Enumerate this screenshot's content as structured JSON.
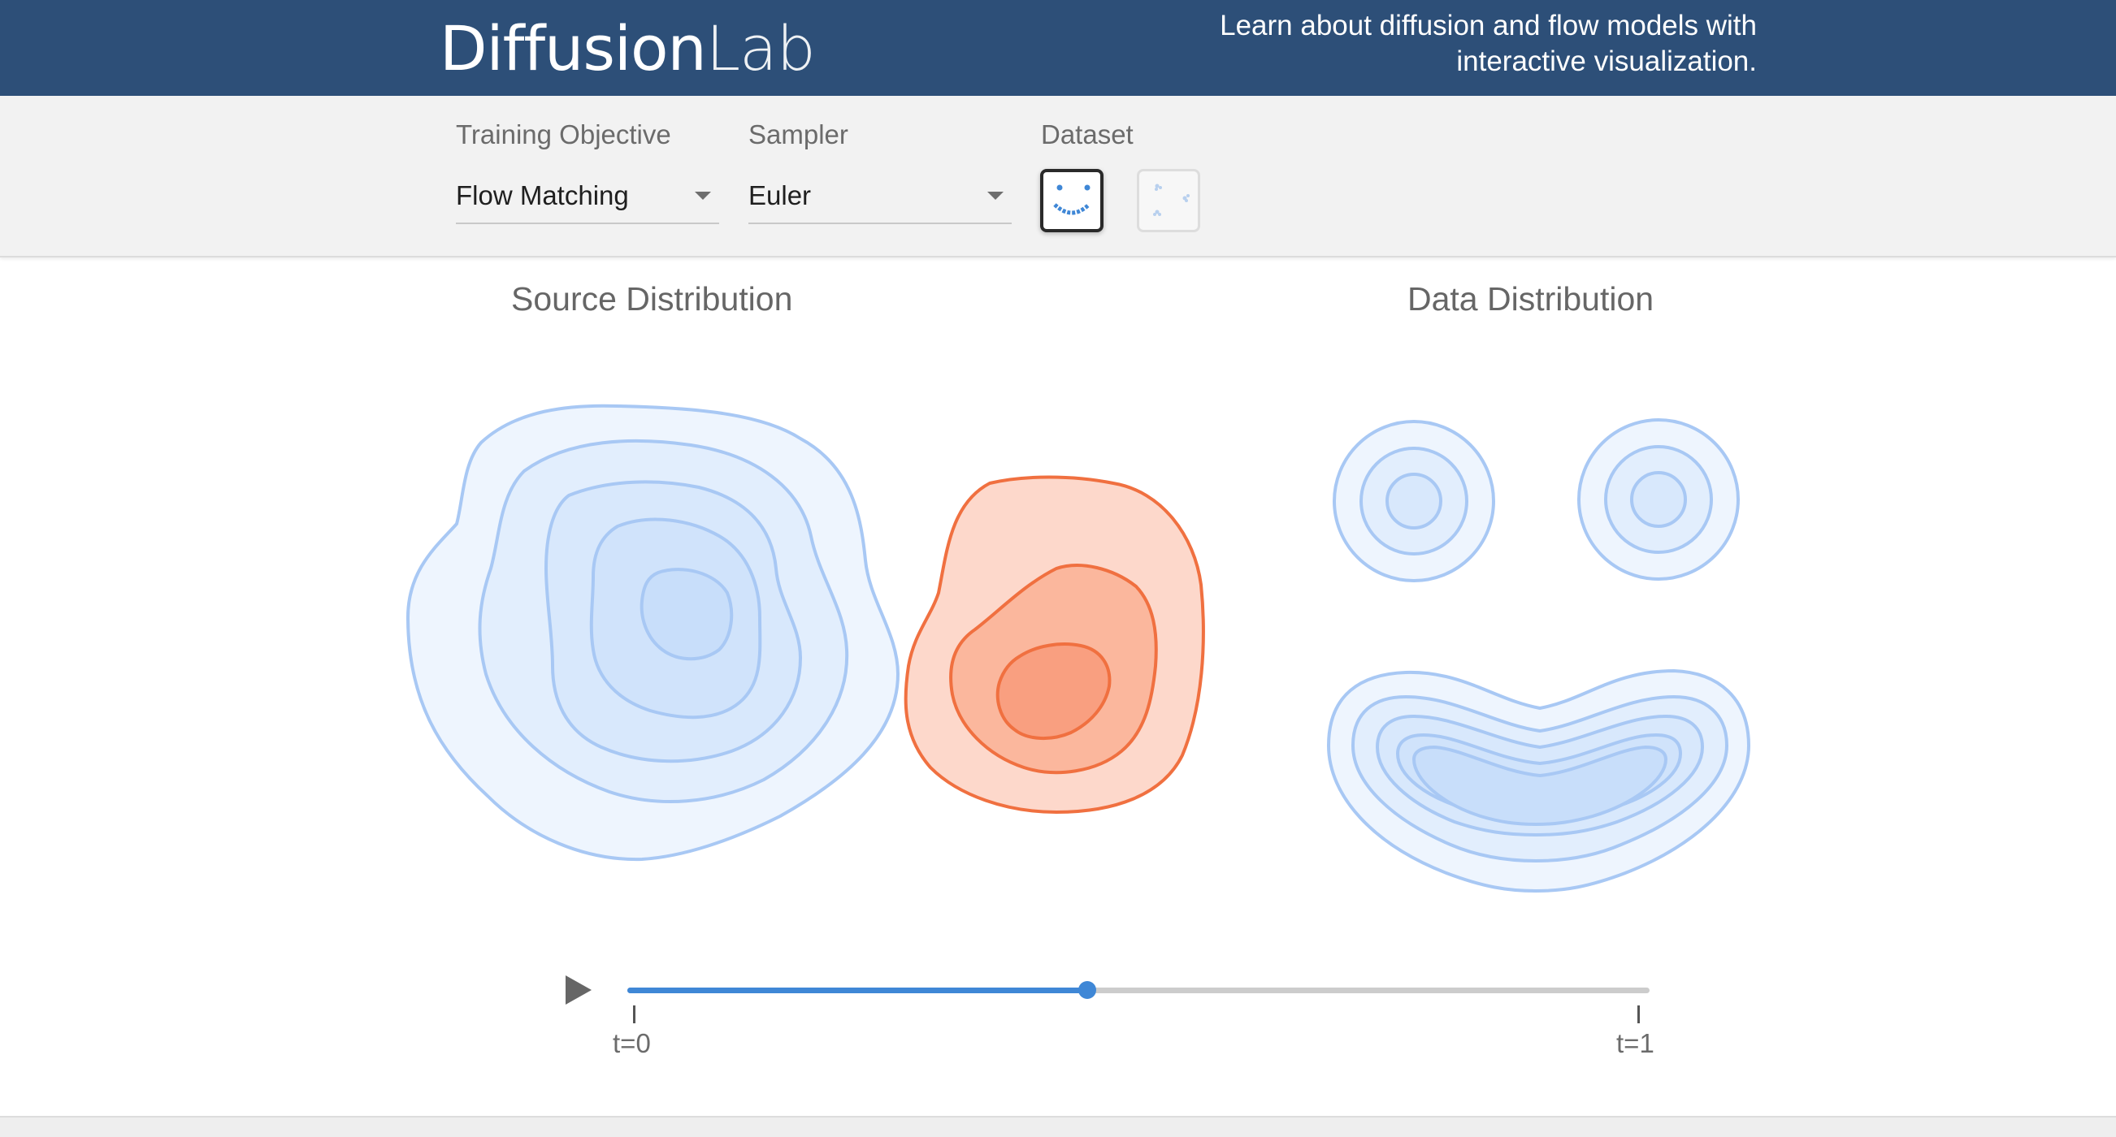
{
  "header": {
    "brand_main": "Diffusion",
    "brand_light": "Lab",
    "tagline_line1": "Learn about diffusion and flow models with",
    "tagline_line2": "interactive visualization."
  },
  "controls": {
    "objective": {
      "label": "Training Objective",
      "value": "Flow Matching"
    },
    "sampler": {
      "label": "Sampler",
      "value": "Euler"
    },
    "dataset": {
      "label": "Dataset",
      "options": [
        {
          "name": "smiley",
          "selected": true
        },
        {
          "name": "scattered-clusters",
          "selected": false
        }
      ]
    }
  },
  "main": {
    "source_title": "Source Distribution",
    "data_title": "Data Distribution"
  },
  "slider": {
    "value": 0.45,
    "start_label": "t=0",
    "end_label": "t=1"
  },
  "colors": {
    "header_bg": "#2d4f78",
    "accent": "#3f87d6",
    "blue_contour": "#a8c8f4",
    "orange_contour": "#f07040"
  }
}
